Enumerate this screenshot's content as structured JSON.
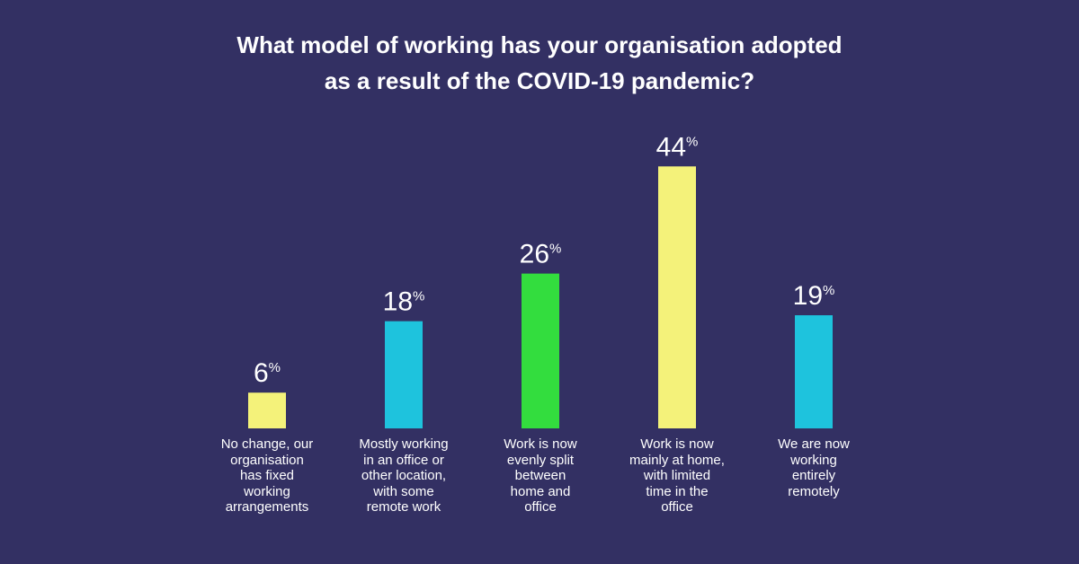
{
  "chart_data": {
    "type": "bar",
    "title": "What model of working has your organisation adopted as a result of the COVID-19 pandemic?",
    "title_lines": [
      "What model of working has your organisation adopted",
      "as a result of the COVID-19 pandemic?"
    ],
    "unit": "%",
    "ylim": [
      0,
      50
    ],
    "grid": false,
    "xlabel": "",
    "ylabel": "",
    "categories": [
      "No change, our organisation has fixed working arrangements",
      "Mostly working in an office or other location, with some remote work",
      "Work is now evenly split between home and office",
      "Work is now mainly at home, with limited time in the office",
      "We are now working entirely remotely"
    ],
    "category_lines": [
      [
        "No change, our",
        "organisation",
        "has fixed",
        "working",
        "arrangements"
      ],
      [
        "Mostly working",
        "in an office or",
        "other location,",
        "with some",
        "remote work"
      ],
      [
        "Work is now",
        "evenly split",
        "between",
        "home and",
        "office"
      ],
      [
        "Work is now",
        "mainly at home,",
        "with limited",
        "time in the",
        "office"
      ],
      [
        "We are now",
        "working",
        "entirely",
        "remotely"
      ]
    ],
    "values": [
      6,
      18,
      26,
      44,
      19
    ],
    "colors": [
      "#f4f27a",
      "#1ec3dd",
      "#33dd3e",
      "#f4f27a",
      "#1ec3dd"
    ]
  }
}
